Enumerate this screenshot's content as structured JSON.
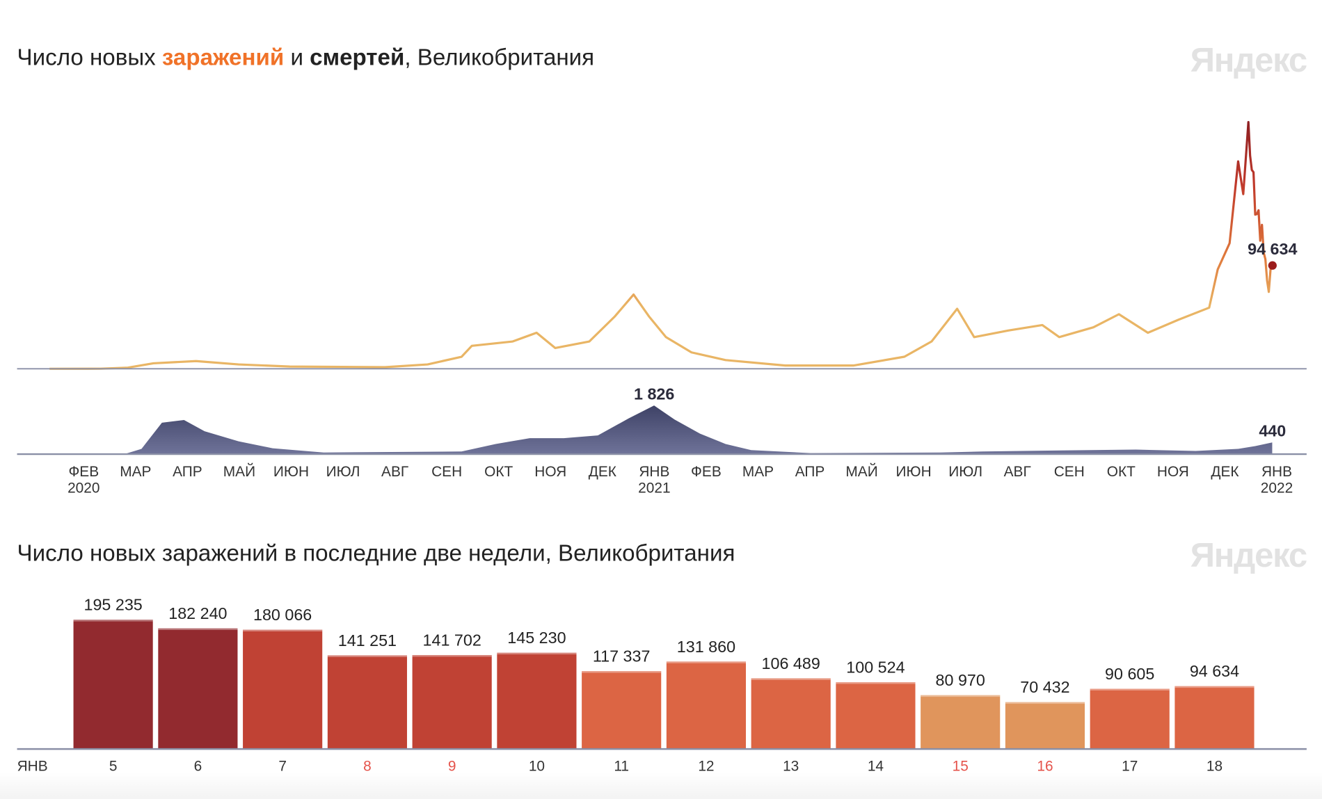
{
  "chart_data": [
    {
      "type": "line",
      "title_parts": {
        "prefix": "Число новых ",
        "cases": "заражений",
        "and": " и ",
        "deaths": "смертей",
        "suffix": ", Великобритания"
      },
      "logo": "Яндекс",
      "x_ticks": [
        {
          "month": "ФЕВ",
          "year": "2020"
        },
        {
          "month": "МАР"
        },
        {
          "month": "АПР"
        },
        {
          "month": "МАЙ"
        },
        {
          "month": "ИЮН"
        },
        {
          "month": "ИЮЛ"
        },
        {
          "month": "АВГ"
        },
        {
          "month": "СЕН"
        },
        {
          "month": "ОКТ"
        },
        {
          "month": "НОЯ"
        },
        {
          "month": "ДЕК"
        },
        {
          "month": "ЯНВ",
          "year": "2021"
        },
        {
          "month": "ФЕВ"
        },
        {
          "month": "МАР"
        },
        {
          "month": "АПР"
        },
        {
          "month": "МАЙ"
        },
        {
          "month": "ИЮН"
        },
        {
          "month": "ИЮЛ"
        },
        {
          "month": "АВГ"
        },
        {
          "month": "СЕН"
        },
        {
          "month": "ОКТ"
        },
        {
          "month": "НОЯ"
        },
        {
          "month": "ДЕК"
        },
        {
          "month": "ЯНВ",
          "year": "2022"
        }
      ],
      "grid": false,
      "colors": {
        "cases_low": "#e9b565",
        "cases_mid": "#e07a3c",
        "cases_high": "#c0392b",
        "cases_peak": "#8e1f22",
        "deaths": "#5a5f87",
        "axis": "#8a8fa6",
        "title_cases": "#f07228"
      },
      "series": [
        {
          "key": "cases",
          "ylim": [
            0,
            226000
          ],
          "last_label": "94 634",
          "points": [
            [
              "2020-01-31",
              0
            ],
            [
              "2020-03-01",
              100
            ],
            [
              "2020-03-17",
              1000
            ],
            [
              "2020-04-01",
              5000
            ],
            [
              "2020-04-26",
              7000
            ],
            [
              "2020-05-21",
              4000
            ],
            [
              "2020-06-20",
              2000
            ],
            [
              "2020-08-15",
              1500
            ],
            [
              "2020-09-09",
              4000
            ],
            [
              "2020-09-29",
              11000
            ],
            [
              "2020-10-05",
              21000
            ],
            [
              "2020-10-29",
              25000
            ],
            [
              "2020-11-12",
              33000
            ],
            [
              "2020-11-23",
              19000
            ],
            [
              "2020-12-13",
              25000
            ],
            [
              "2020-12-28",
              48000
            ],
            [
              "2021-01-08",
              68000
            ],
            [
              "2021-01-17",
              48000
            ],
            [
              "2021-01-27",
              29000
            ],
            [
              "2021-02-11",
              15000
            ],
            [
              "2021-03-03",
              8000
            ],
            [
              "2021-04-07",
              3000
            ],
            [
              "2021-05-17",
              3000
            ],
            [
              "2021-06-16",
              11000
            ],
            [
              "2021-07-02",
              25000
            ],
            [
              "2021-07-17",
              55000
            ],
            [
              "2021-07-27",
              29000
            ],
            [
              "2021-08-16",
              35000
            ],
            [
              "2021-09-05",
              40000
            ],
            [
              "2021-09-15",
              29000
            ],
            [
              "2021-10-05",
              38000
            ],
            [
              "2021-10-20",
              50000
            ],
            [
              "2021-11-06",
              33000
            ],
            [
              "2021-11-24",
              45000
            ],
            [
              "2021-12-12",
              56000
            ],
            [
              "2021-12-17",
              91000
            ],
            [
              "2021-12-24",
              115000
            ],
            [
              "2021-12-29",
              190000
            ],
            [
              "2022-01-01",
              160000
            ],
            [
              "2022-01-04",
              226000
            ],
            [
              "2022-01-05",
              195235
            ],
            [
              "2022-01-06",
              182240
            ],
            [
              "2022-01-07",
              180066
            ],
            [
              "2022-01-08",
              141251
            ],
            [
              "2022-01-09",
              141702
            ],
            [
              "2022-01-10",
              145230
            ],
            [
              "2022-01-11",
              117337
            ],
            [
              "2022-01-12",
              131860
            ],
            [
              "2022-01-13",
              106489
            ],
            [
              "2022-01-14",
              100524
            ],
            [
              "2022-01-15",
              80970
            ],
            [
              "2022-01-16",
              70432
            ],
            [
              "2022-01-17",
              90605
            ],
            [
              "2022-01-18",
              94634
            ]
          ]
        },
        {
          "key": "deaths",
          "ylim": [
            0,
            1826
          ],
          "peak_label": "1 826",
          "last_label": "440",
          "points": [
            [
              "2020-01-31",
              0
            ],
            [
              "2020-03-15",
              0
            ],
            [
              "2020-03-25",
              200
            ],
            [
              "2020-04-06",
              1180
            ],
            [
              "2020-04-19",
              1280
            ],
            [
              "2020-05-01",
              860
            ],
            [
              "2020-05-21",
              480
            ],
            [
              "2020-06-10",
              220
            ],
            [
              "2020-07-10",
              60
            ],
            [
              "2020-09-29",
              100
            ],
            [
              "2020-10-19",
              380
            ],
            [
              "2020-11-08",
              600
            ],
            [
              "2020-11-28",
              600
            ],
            [
              "2020-12-18",
              700
            ],
            [
              "2021-01-05",
              1340
            ],
            [
              "2021-01-20",
              1826
            ],
            [
              "2021-02-01",
              1300
            ],
            [
              "2021-02-16",
              770
            ],
            [
              "2021-03-03",
              380
            ],
            [
              "2021-03-18",
              150
            ],
            [
              "2021-04-22",
              40
            ],
            [
              "2021-07-07",
              60
            ],
            [
              "2021-08-01",
              100
            ],
            [
              "2021-09-20",
              140
            ],
            [
              "2021-10-30",
              170
            ],
            [
              "2021-12-04",
              120
            ],
            [
              "2021-12-29",
              200
            ],
            [
              "2022-01-08",
              300
            ],
            [
              "2022-01-18",
              440
            ]
          ]
        }
      ]
    },
    {
      "type": "bar",
      "title": "Число новых заражений в последние две недели, Великобритания",
      "logo": "Яндекс",
      "month_label": "ЯНВ",
      "ylim": [
        0,
        195235
      ],
      "grid": false,
      "weekend_color": "#e5534b",
      "categories": [
        "5",
        "6",
        "7",
        "8",
        "9",
        "10",
        "11",
        "12",
        "13",
        "14",
        "15",
        "16",
        "17",
        "18"
      ],
      "weekend": [
        false,
        false,
        false,
        true,
        true,
        false,
        false,
        false,
        false,
        false,
        true,
        true,
        false,
        false
      ],
      "values": [
        195235,
        182240,
        180066,
        141251,
        141702,
        145230,
        117337,
        131860,
        106489,
        100524,
        80970,
        70432,
        90605,
        94634
      ],
      "value_labels": [
        "195 235",
        "182 240",
        "180 066",
        "141 251",
        "141 702",
        "145 230",
        "117 337",
        "131 860",
        "106 489",
        "100 524",
        "80 970",
        "70 432",
        "90 605",
        "94 634"
      ],
      "colors": [
        "#922a2f",
        "#922a2f",
        "#c04234",
        "#c04234",
        "#c04234",
        "#c04234",
        "#dc6544",
        "#dc6544",
        "#dc6544",
        "#dc6544",
        "#e0955c",
        "#e0955c",
        "#dc6544",
        "#dc6544"
      ]
    }
  ]
}
